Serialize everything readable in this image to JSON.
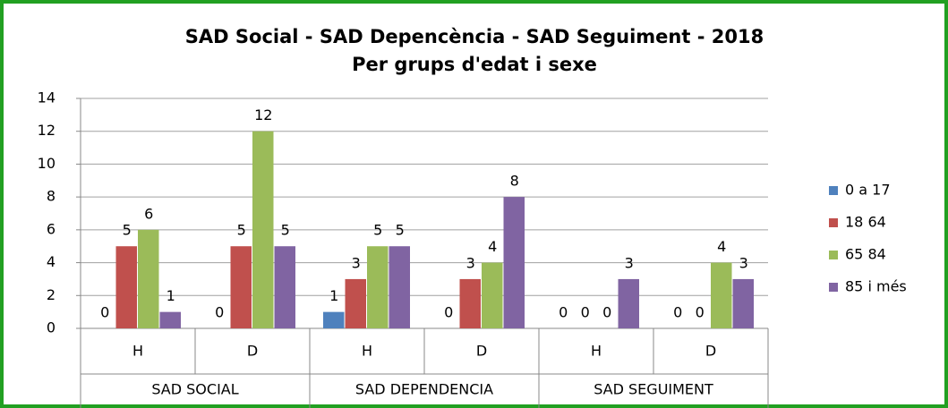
{
  "chart_data": {
    "type": "bar",
    "title": "SAD Social - SAD Depencència - SAD Seguiment  - 2018",
    "subtitle": "Per grups d'edat i sexe",
    "categories": [
      "H",
      "D",
      "H",
      "D",
      "H",
      "D"
    ],
    "category_groups": [
      "SAD SOCIAL",
      "SAD DEPENDENCIA",
      "SAD SEGUIMENT"
    ],
    "series": [
      {
        "name": "0 a 17",
        "color": "#4f81bd",
        "values": [
          0,
          0,
          1,
          0,
          0,
          0
        ]
      },
      {
        "name": "18  64",
        "color": "#c0504d",
        "values": [
          5,
          5,
          3,
          3,
          0,
          0
        ]
      },
      {
        "name": "65  84",
        "color": "#9bbb59",
        "values": [
          6,
          12,
          5,
          4,
          0,
          4
        ]
      },
      {
        "name": "85 i més",
        "color": "#8064a2",
        "values": [
          1,
          5,
          5,
          8,
          3,
          3
        ]
      }
    ],
    "ylim": [
      0,
      14
    ],
    "yticks": [
      0,
      2,
      4,
      6,
      8,
      10,
      12,
      14
    ],
    "grid": true,
    "legend": "right"
  }
}
